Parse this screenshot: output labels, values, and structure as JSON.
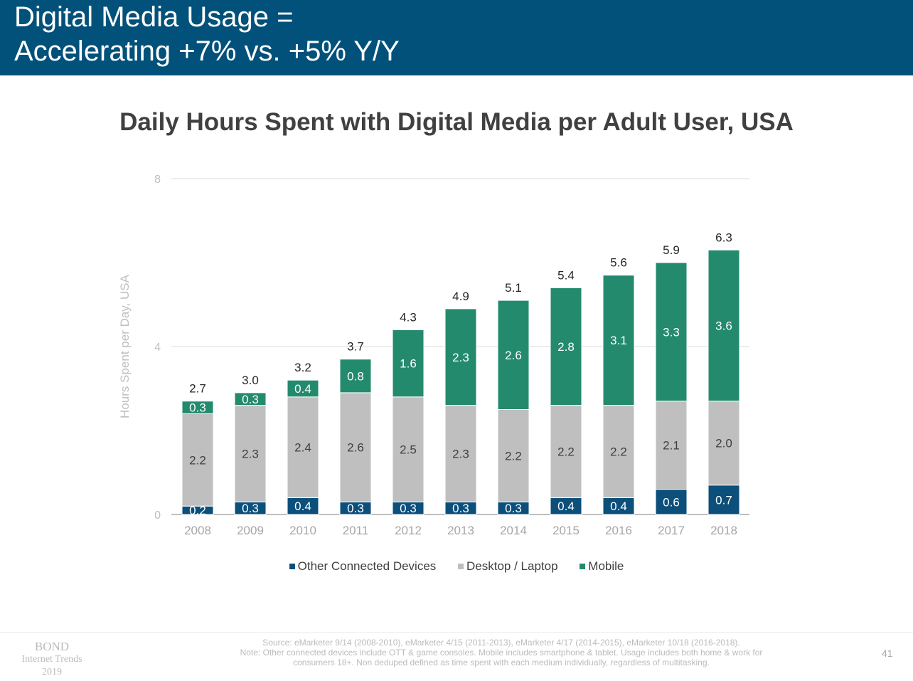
{
  "header": {
    "title": "Digital Media Usage =\nAccelerating +7% vs. +5% Y/Y"
  },
  "colors": {
    "header": "#02517a",
    "other": "#0b4f7a",
    "desktop": "#bfbfbf",
    "mobile": "#248a6e"
  },
  "chart_data": {
    "type": "bar",
    "stacked": true,
    "title": "Daily Hours Spent with Digital Media per Adult User, USA",
    "xlabel": "",
    "ylabel": "Hours Spent per Day, USA",
    "ylim": [
      0,
      8
    ],
    "yticks": [
      0,
      4,
      8
    ],
    "grid": true,
    "legend": "bottom",
    "categories": [
      "2008",
      "2009",
      "2010",
      "2011",
      "2012",
      "2013",
      "2014",
      "2015",
      "2016",
      "2017",
      "2018"
    ],
    "series": [
      {
        "name": "Other Connected Devices",
        "color": "#0b4f7a",
        "values": [
          0.2,
          0.3,
          0.4,
          0.3,
          0.3,
          0.3,
          0.3,
          0.4,
          0.4,
          0.6,
          0.7
        ]
      },
      {
        "name": "Desktop / Laptop",
        "color": "#bfbfbf",
        "values": [
          2.2,
          2.3,
          2.4,
          2.6,
          2.5,
          2.3,
          2.2,
          2.2,
          2.2,
          2.1,
          2.0
        ]
      },
      {
        "name": "Mobile",
        "color": "#248a6e",
        "values": [
          0.3,
          0.3,
          0.4,
          0.8,
          1.6,
          2.3,
          2.6,
          2.8,
          3.1,
          3.3,
          3.6
        ]
      }
    ],
    "totals": [
      "2.7",
      "3.0",
      "3.2",
      "3.7",
      "4.3",
      "4.9",
      "5.1",
      "5.4",
      "5.6",
      "5.9",
      "6.3"
    ]
  },
  "footer": {
    "logo": [
      "BOND",
      "Internet Trends",
      "2019"
    ],
    "source": "Source: eMarketer 9/14 (2008-2010), eMarketer 4/15 (2011-2013), eMarketer 4/17 (2014-2015), eMarketer 10/18 (2016-2018).",
    "note": "Note: Other connected devices include OTT & game consoles. Mobile includes smartphone & tablet. Usage includes both home & work for consumers 18+. Non deduped defined as time spent with each medium individually, regardless of multitasking.",
    "page": "41"
  }
}
